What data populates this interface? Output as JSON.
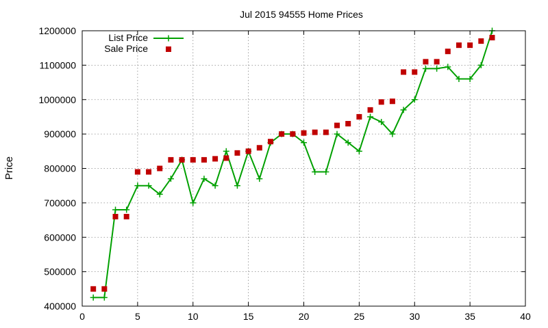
{
  "chart_data": {
    "type": "line",
    "title": "Jul 2015 94555 Home Prices",
    "xlabel": "",
    "ylabel": "Price",
    "xlim": [
      0,
      40
    ],
    "ylim": [
      400000,
      1200000
    ],
    "xticks": [
      0,
      5,
      10,
      15,
      20,
      25,
      30,
      35,
      40
    ],
    "yticks": [
      400000,
      500000,
      600000,
      700000,
      800000,
      900000,
      1000000,
      1100000,
      1200000
    ],
    "grid": true,
    "legend_position": "top-left",
    "series": [
      {
        "name": "List Price",
        "style": "line-points",
        "color": "#00a000",
        "x": [
          1,
          2,
          3,
          4,
          5,
          6,
          7,
          8,
          9,
          10,
          11,
          12,
          13,
          14,
          15,
          16,
          17,
          18,
          19,
          20,
          21,
          22,
          23,
          24,
          25,
          26,
          27,
          28,
          29,
          30,
          31,
          32,
          33,
          34,
          35,
          36,
          37
        ],
        "values": [
          425000,
          425000,
          680000,
          680000,
          750000,
          750000,
          725000,
          770000,
          825000,
          700000,
          770000,
          750000,
          850000,
          750000,
          850000,
          770000,
          875000,
          900000,
          900000,
          875000,
          790000,
          790000,
          900000,
          875000,
          850000,
          950000,
          935000,
          900000,
          970000,
          1000000,
          1090000,
          1090000,
          1095000,
          1060000,
          1060000,
          1100000,
          1200000
        ]
      },
      {
        "name": "Sale Price",
        "style": "points",
        "color": "#c00000",
        "x": [
          1,
          2,
          3,
          4,
          5,
          6,
          7,
          8,
          9,
          10,
          11,
          12,
          13,
          14,
          15,
          16,
          17,
          18,
          19,
          20,
          21,
          22,
          23,
          24,
          25,
          26,
          27,
          28,
          29,
          30,
          31,
          32,
          33,
          34,
          35,
          36,
          37
        ],
        "values": [
          450000,
          450000,
          660000,
          660000,
          790000,
          790000,
          800000,
          825000,
          825000,
          825000,
          825000,
          828000,
          830000,
          845000,
          850000,
          860000,
          878000,
          900000,
          900000,
          903000,
          905000,
          905000,
          925000,
          930000,
          950000,
          970000,
          993000,
          995000,
          1080000,
          1080000,
          1110000,
          1110000,
          1140000,
          1158000,
          1158000,
          1170000,
          1180000
        ]
      }
    ]
  }
}
